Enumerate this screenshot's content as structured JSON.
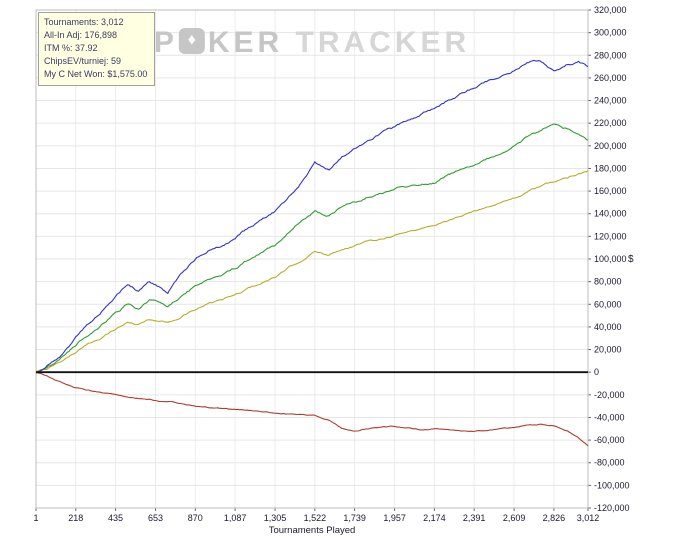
{
  "stats_overlay": {
    "lines": [
      "Tournaments: 3,012",
      "All-In Adj: 176,898",
      "ITM %: 37.92",
      "ChipsEV/turniej: 59",
      "My C Net Won: $1,575.00"
    ]
  },
  "watermark": {
    "part1": "P",
    "o_symbol": "♦",
    "part2": "KER",
    "part3": "TRACKER"
  },
  "colors": {
    "grid_h": "#e6e6e6",
    "grid_v": "#ececec",
    "tick": "#666666",
    "axis_text": "#1a1a2e",
    "plot_border": "#bcbcbc",
    "zero_line": "#111111"
  },
  "chart_data": {
    "type": "line",
    "title": "",
    "xlabel": "Tournaments Played",
    "ylabel": "$",
    "grid": true,
    "legend_position": "none",
    "xlim": [
      1,
      3012
    ],
    "ylim": [
      -120000,
      320000
    ],
    "y_tick_step": 20000,
    "x_ticks": [
      1,
      218,
      435,
      653,
      870,
      1087,
      1305,
      1522,
      1739,
      1957,
      2174,
      2391,
      2609,
      2826,
      3012
    ],
    "x_tick_labels": [
      "1",
      "218",
      "435",
      "653",
      "870",
      "1,087",
      "1,305",
      "1,522",
      "1,739",
      "1,957",
      "2,174",
      "2,391",
      "2,609",
      "2,826",
      "3,012"
    ],
    "x": [
      1,
      60,
      120,
      180,
      218,
      280,
      350,
      435,
      500,
      560,
      620,
      653,
      720,
      800,
      870,
      940,
      1010,
      1087,
      1160,
      1230,
      1305,
      1380,
      1450,
      1522,
      1600,
      1670,
      1739,
      1820,
      1900,
      1957,
      2030,
      2100,
      2174,
      2250,
      2320,
      2391,
      2460,
      2530,
      2609,
      2680,
      2750,
      2826,
      2900,
      2960,
      3012
    ],
    "series": [
      {
        "name": "yellow",
        "color": "#b8ae2a",
        "jitter": 1100,
        "y": [
          0,
          3000,
          8000,
          14000,
          18000,
          24000,
          30000,
          38000,
          44000,
          42000,
          47000,
          46000,
          44000,
          50000,
          55000,
          60000,
          64000,
          68000,
          74000,
          79000,
          84000,
          92000,
          99000,
          106000,
          104000,
          109000,
          112000,
          116000,
          119000,
          121000,
          124000,
          127000,
          130000,
          134000,
          138000,
          142000,
          146000,
          150000,
          154000,
          159000,
          164000,
          168000,
          172000,
          176000,
          178000
        ]
      },
      {
        "name": "green",
        "color": "#2f9e2f",
        "jitter": 1400,
        "y": [
          0,
          4000,
          10000,
          18000,
          24000,
          32000,
          40000,
          52000,
          60000,
          56000,
          64000,
          62000,
          58000,
          68000,
          76000,
          82000,
          86000,
          92000,
          100000,
          106000,
          112000,
          124000,
          134000,
          142000,
          138000,
          146000,
          150000,
          155000,
          158000,
          161000,
          164000,
          166000,
          168000,
          174000,
          178000,
          182000,
          188000,
          194000,
          200000,
          208000,
          214000,
          220000,
          215000,
          210000,
          205000
        ]
      },
      {
        "name": "blue",
        "color": "#3333cc",
        "jitter": 1400,
        "y": [
          0,
          6000,
          12000,
          22000,
          30000,
          42000,
          52000,
          68000,
          78000,
          72000,
          80000,
          77000,
          70000,
          88000,
          100000,
          108000,
          112000,
          118000,
          128000,
          135000,
          142000,
          155000,
          168000,
          185000,
          178000,
          190000,
          197000,
          205000,
          212000,
          216000,
          222000,
          228000,
          234000,
          240000,
          246000,
          252000,
          257000,
          262000,
          267000,
          273000,
          276000,
          266000,
          272000,
          274000,
          270000
        ]
      },
      {
        "name": "red",
        "color": "#b03c30",
        "jitter": 600,
        "y": [
          0,
          -3000,
          -8000,
          -12000,
          -14000,
          -16000,
          -18000,
          -20000,
          -22000,
          -23000,
          -24000,
          -25000,
          -26000,
          -28000,
          -30000,
          -31000,
          -32000,
          -33000,
          -34000,
          -35000,
          -36000,
          -37000,
          -37500,
          -38000,
          -42000,
          -50000,
          -52000,
          -50000,
          -48000,
          -48000,
          -49000,
          -51000,
          -50000,
          -51000,
          -52000,
          -52000,
          -51000,
          -50000,
          -49000,
          -47000,
          -46000,
          -47000,
          -52000,
          -58000,
          -65000
        ]
      }
    ]
  }
}
